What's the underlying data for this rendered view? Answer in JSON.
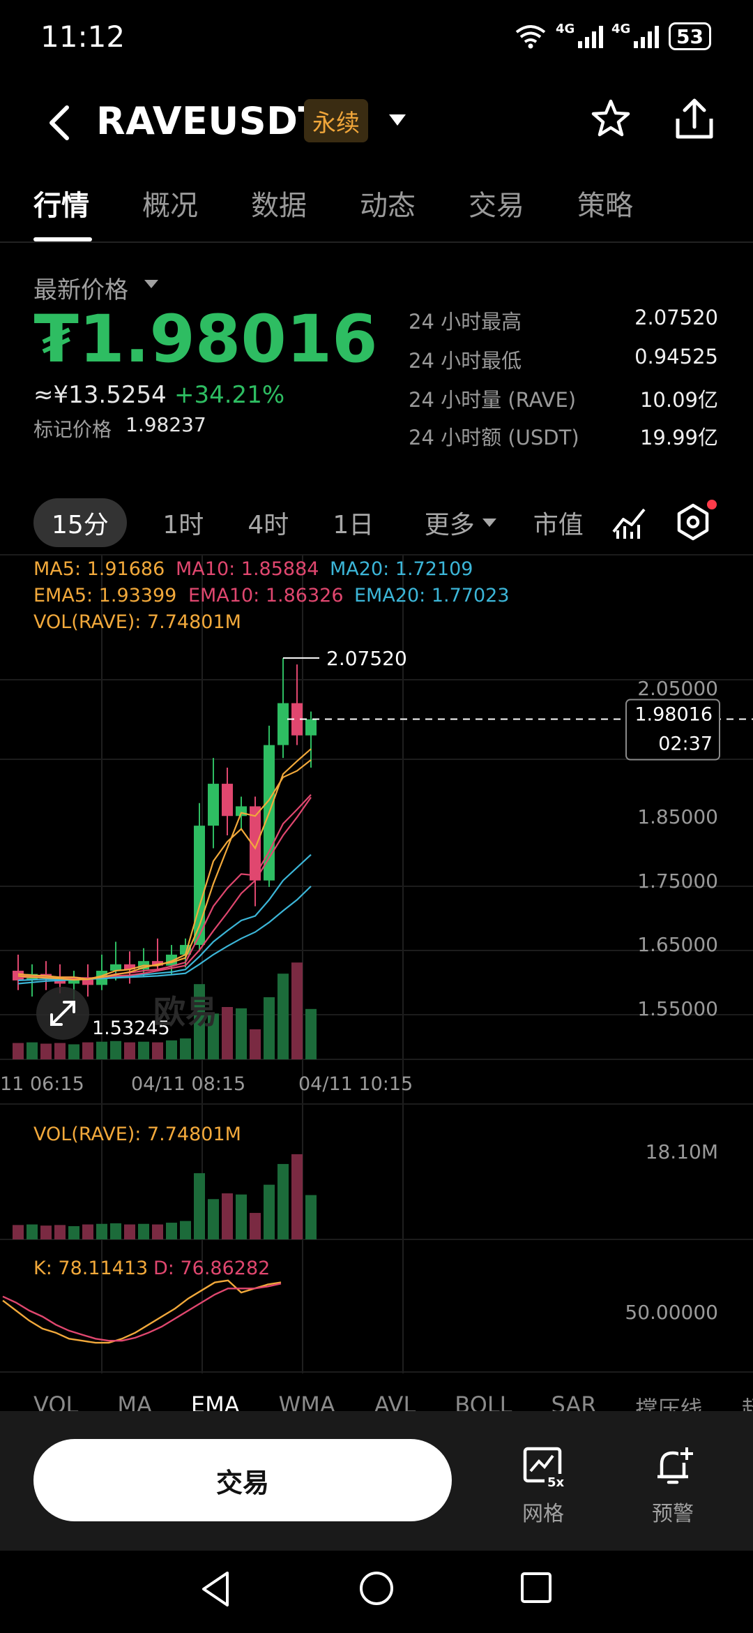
{
  "status_bar": {
    "time": "11:12",
    "net1": "4G",
    "net2": "4G",
    "battery": "53"
  },
  "header": {
    "symbol": "RAVEUSDT",
    "badge": "永续"
  },
  "tabs": [
    "行情",
    "概况",
    "数据",
    "动态",
    "交易",
    "策略"
  ],
  "price_panel": {
    "latest_label": "最新价格",
    "price": "₮1.98016",
    "cny": "≈¥13.5254",
    "change": "+34.21%",
    "mark_label": "标记价格",
    "mark_value": "1.98237",
    "stats": [
      {
        "label": "24 小时最高",
        "value": "2.07520"
      },
      {
        "label": "24 小时最低",
        "value": "0.94525"
      },
      {
        "label": "24 小时量 (RAVE)",
        "value": "10.09亿"
      },
      {
        "label": "24 小时额 (USDT)",
        "value": "19.99亿"
      }
    ]
  },
  "intervals": {
    "active": "15分",
    "others": [
      "1时",
      "4时",
      "1日"
    ],
    "more": "更多",
    "market_cap": "市值"
  },
  "legends": {
    "ma5": "MA5: 1.91686",
    "ma10": "MA10: 1.85884",
    "ma20": "MA20: 1.72109",
    "ema5": "EMA5: 1.93399",
    "ema10": "EMA10: 1.86326",
    "ema20": "EMA20: 1.77023",
    "vol_main": "VOL(RAVE): 7.74801M",
    "vol_sub": "VOL(RAVE): 7.74801M",
    "vol_max": "18.10M",
    "kdj_k": "K: 78.11413",
    "kdj_d": "D: 76.86282",
    "kdj_level": "50.00000"
  },
  "price_axis": [
    "2.05000",
    "1.85000",
    "1.75000",
    "1.65000",
    "1.55000"
  ],
  "current_price_tag": {
    "price": "1.98016",
    "countdown": "02:37"
  },
  "high_marker": "2.07520",
  "low_marker": "1.53245",
  "watermark": "欧易",
  "time_axis": [
    "11 06:15",
    "04/11 08:15",
    "04/11 10:15"
  ],
  "indicator_tabs": [
    "VOL",
    "MA",
    "EMA",
    "WMA",
    "AVL",
    "BOLL",
    "SAR",
    "撑压线",
    "超"
  ],
  "actions": {
    "trade": "交易",
    "grid": "网格",
    "alert": "预警"
  },
  "colors": {
    "up": "#2ebd62",
    "down": "#e0476f",
    "ma5": "#f2a93b",
    "ma10": "#e0476f",
    "ma20": "#3cb6d8"
  },
  "chart_data": {
    "type": "candlestick",
    "interval": "15分",
    "candles": [
      {
        "o": 1.59,
        "h": 1.615,
        "l": 1.56,
        "c": 1.575
      },
      {
        "o": 1.575,
        "h": 1.6,
        "l": 1.55,
        "c": 1.585
      },
      {
        "o": 1.585,
        "h": 1.605,
        "l": 1.56,
        "c": 1.58
      },
      {
        "o": 1.58,
        "h": 1.6,
        "l": 1.555,
        "c": 1.57
      },
      {
        "o": 1.57,
        "h": 1.59,
        "l": 1.545,
        "c": 1.58
      },
      {
        "o": 1.58,
        "h": 1.6,
        "l": 1.55,
        "c": 1.568
      },
      {
        "o": 1.568,
        "h": 1.615,
        "l": 1.56,
        "c": 1.59
      },
      {
        "o": 1.59,
        "h": 1.635,
        "l": 1.575,
        "c": 1.6
      },
      {
        "o": 1.6,
        "h": 1.62,
        "l": 1.57,
        "c": 1.592
      },
      {
        "o": 1.592,
        "h": 1.625,
        "l": 1.58,
        "c": 1.605
      },
      {
        "o": 1.605,
        "h": 1.64,
        "l": 1.59,
        "c": 1.598
      },
      {
        "o": 1.598,
        "h": 1.63,
        "l": 1.585,
        "c": 1.615
      },
      {
        "o": 1.615,
        "h": 1.64,
        "l": 1.595,
        "c": 1.63
      },
      {
        "o": 1.63,
        "h": 1.85,
        "l": 1.62,
        "c": 1.815
      },
      {
        "o": 1.815,
        "h": 1.92,
        "l": 1.78,
        "c": 1.88
      },
      {
        "o": 1.88,
        "h": 1.905,
        "l": 1.8,
        "c": 1.83
      },
      {
        "o": 1.83,
        "h": 1.86,
        "l": 1.81,
        "c": 1.845
      },
      {
        "o": 1.845,
        "h": 1.86,
        "l": 1.69,
        "c": 1.73
      },
      {
        "o": 1.73,
        "h": 1.97,
        "l": 1.72,
        "c": 1.94
      },
      {
        "o": 1.94,
        "h": 2.075,
        "l": 1.92,
        "c": 2.005
      },
      {
        "o": 2.005,
        "h": 2.065,
        "l": 1.94,
        "c": 1.955
      },
      {
        "o": 1.955,
        "h": 1.992,
        "l": 1.905,
        "c": 1.98
      }
    ],
    "ma5": [
      1.582,
      1.58,
      1.579,
      1.578,
      1.576,
      1.577,
      1.58,
      1.584,
      1.588,
      1.595,
      1.6,
      1.603,
      1.61,
      1.66,
      1.725,
      1.78,
      1.835,
      1.83,
      1.855,
      1.89,
      1.9,
      1.917
    ],
    "ma10": [
      1.58,
      1.58,
      1.58,
      1.579,
      1.578,
      1.578,
      1.58,
      1.582,
      1.583,
      1.586,
      1.59,
      1.594,
      1.598,
      1.622,
      1.652,
      1.68,
      1.71,
      1.73,
      1.765,
      1.8,
      1.828,
      1.859
    ],
    "ma20": [
      1.57,
      1.572,
      1.574,
      1.575,
      1.576,
      1.577,
      1.578,
      1.579,
      1.58,
      1.581,
      1.582,
      1.584,
      1.586,
      1.6,
      1.615,
      1.628,
      1.64,
      1.65,
      1.665,
      1.683,
      1.7,
      1.721
    ],
    "ema5": [
      1.585,
      1.583,
      1.582,
      1.58,
      1.58,
      1.577,
      1.582,
      1.59,
      1.592,
      1.598,
      1.598,
      1.605,
      1.615,
      1.69,
      1.76,
      1.79,
      1.81,
      1.78,
      1.835,
      1.895,
      1.915,
      1.934
    ],
    "ema10": [
      1.583,
      1.582,
      1.581,
      1.58,
      1.58,
      1.578,
      1.58,
      1.585,
      1.587,
      1.59,
      1.592,
      1.597,
      1.603,
      1.645,
      1.69,
      1.718,
      1.74,
      1.738,
      1.775,
      1.818,
      1.84,
      1.863
    ],
    "ema20": [
      1.575,
      1.576,
      1.577,
      1.577,
      1.578,
      1.578,
      1.579,
      1.581,
      1.582,
      1.584,
      1.586,
      1.588,
      1.592,
      1.612,
      1.635,
      1.652,
      1.668,
      1.675,
      1.7,
      1.73,
      1.75,
      1.77
    ],
    "volume": [
      2.5,
      2.6,
      2.4,
      2.5,
      2.3,
      2.6,
      2.7,
      2.8,
      2.6,
      2.7,
      2.6,
      2.9,
      3.2,
      11.5,
      7.0,
      8.0,
      7.8,
      4.6,
      9.5,
      13.1,
      14.8,
      7.7
    ],
    "kdj_k": [
      60,
      50,
      40,
      32,
      28,
      22,
      20,
      18,
      18,
      22,
      28,
      36,
      44,
      52,
      62,
      70,
      78,
      80,
      68,
      72,
      76,
      78.1
    ],
    "kdj_d": [
      64,
      58,
      50,
      44,
      36,
      30,
      26,
      22,
      20,
      20,
      23,
      28,
      34,
      42,
      50,
      58,
      66,
      72,
      72,
      72,
      74,
      76.9
    ],
    "ylim": [
      1.53,
      2.08
    ],
    "y_ticks": [
      2.05,
      1.85,
      1.75,
      1.65,
      1.55
    ],
    "x_ticks": [
      "11 06:15",
      "04/11 08:15",
      "04/11 10:15"
    ],
    "last_price": 1.98016
  }
}
